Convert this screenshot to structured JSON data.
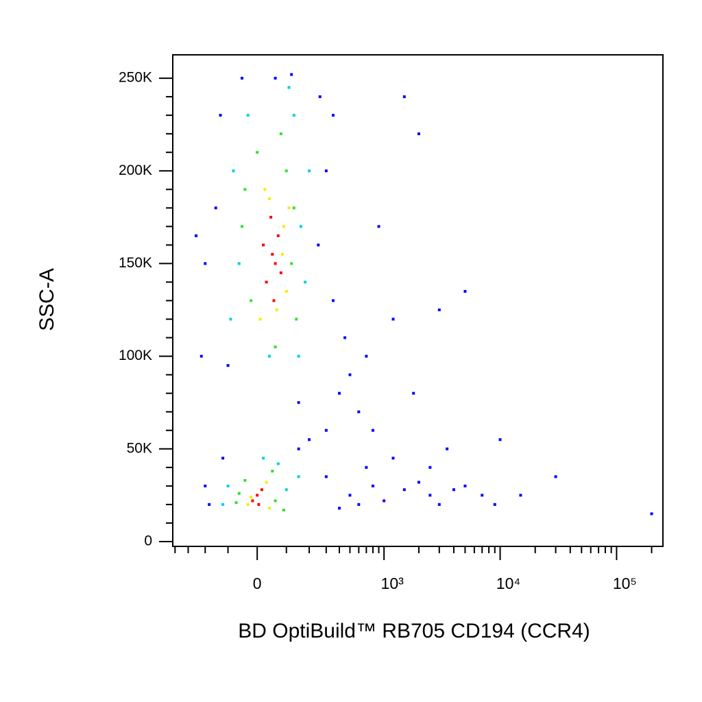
{
  "chart_data": {
    "type": "scatter",
    "xlabel": "BD OptiBuild™ RB705 CD194 (CCR4)",
    "ylabel": "SSC-A",
    "xscale": "asinh",
    "xscale_width": 164,
    "xlim": [
      -420,
      250000
    ],
    "ylim": [
      -2600,
      262600
    ],
    "xticks": [
      0,
      {
        "value": 1000,
        "label": "10³"
      },
      {
        "value": 10000,
        "label": "10⁴"
      },
      {
        "value": 100000,
        "label": "10⁵"
      }
    ],
    "xminor_ticks": [
      -400,
      -300,
      -200,
      -100,
      100,
      200,
      300,
      400,
      500,
      600,
      700,
      800,
      900,
      2000,
      3000,
      4000,
      5000,
      6000,
      7000,
      8000,
      9000,
      20000,
      30000,
      40000,
      50000,
      60000,
      70000,
      80000,
      90000,
      200000
    ],
    "yticks": [
      0,
      {
        "value": 50000,
        "label": "50K"
      },
      {
        "value": 100000,
        "label": "100K"
      },
      {
        "value": 150000,
        "label": "150K"
      },
      {
        "value": 200000,
        "label": "200K"
      },
      {
        "value": 250000,
        "label": "250K"
      }
    ],
    "yminor_ticks": [
      10000,
      20000,
      30000,
      40000,
      60000,
      70000,
      80000,
      90000,
      110000,
      120000,
      130000,
      140000,
      160000,
      170000,
      180000,
      190000,
      210000,
      220000,
      230000,
      240000
    ],
    "series": [
      {
        "color": "#0000ff",
        "x": [
          -150,
          -200,
          250,
          300,
          -130,
          260,
          -100,
          350,
          500,
          400,
          600,
          300,
          200,
          150,
          700,
          450,
          900,
          1200,
          2000,
          1500,
          3000,
          5000,
          300,
          500,
          800,
          1000,
          1500,
          2000,
          2500,
          3000,
          4000,
          5000,
          7000,
          9000,
          15000,
          30000,
          -200,
          -180,
          -120,
          150,
          60,
          120,
          -50,
          700,
          1200,
          2500,
          3500,
          200000,
          600,
          400,
          -220,
          -250,
          350,
          800,
          1800,
          10000
        ],
        "values": [
          180000,
          150000,
          160000,
          200000,
          230000,
          240000,
          95000,
          130000,
          90000,
          80000,
          70000,
          60000,
          55000,
          75000,
          100000,
          110000,
          170000,
          120000,
          220000,
          240000,
          125000,
          135000,
          35000,
          25000,
          30000,
          22000,
          28000,
          32000,
          25000,
          20000,
          28000,
          30000,
          25000,
          20000,
          25000,
          35000,
          30000,
          20000,
          45000,
          50000,
          250000,
          252000,
          250000,
          40000,
          45000,
          40000,
          50000,
          15000,
          20000,
          18000,
          100000,
          165000,
          230000,
          60000,
          80000,
          55000
        ]
      },
      {
        "color": "#00d0e0",
        "x": [
          -80,
          160,
          -60,
          180,
          -30,
          130,
          40,
          200,
          -90,
          150,
          110,
          -100,
          100,
          150,
          -120,
          20,
          70
        ],
        "values": [
          200000,
          170000,
          150000,
          140000,
          230000,
          230000,
          100000,
          200000,
          120000,
          100000,
          245000,
          30000,
          28000,
          35000,
          20000,
          45000,
          42000
        ]
      },
      {
        "color": "#30e030",
        "x": [
          -40,
          120,
          0,
          140,
          -20,
          100,
          60,
          -50,
          130,
          80,
          -60,
          50,
          -40,
          60,
          90,
          -70
        ],
        "values": [
          190000,
          150000,
          210000,
          120000,
          130000,
          200000,
          105000,
          170000,
          180000,
          220000,
          26000,
          38000,
          33000,
          22000,
          17000,
          21000
        ]
      },
      {
        "color": "#f0f000",
        "x": [
          10,
          90,
          40,
          100,
          25,
          65,
          -20,
          30,
          -30,
          40,
          85,
          110
        ],
        "values": [
          120000,
          170000,
          185000,
          135000,
          190000,
          125000,
          24000,
          32000,
          20000,
          18000,
          155000,
          180000
        ]
      },
      {
        "color": "#ff0000",
        "x": [
          30,
          50,
          70,
          45,
          60,
          20,
          80,
          55,
          0,
          -15,
          15,
          5
        ],
        "values": [
          140000,
          155000,
          165000,
          175000,
          150000,
          160000,
          145000,
          130000,
          25000,
          22000,
          28000,
          20000
        ]
      }
    ]
  }
}
